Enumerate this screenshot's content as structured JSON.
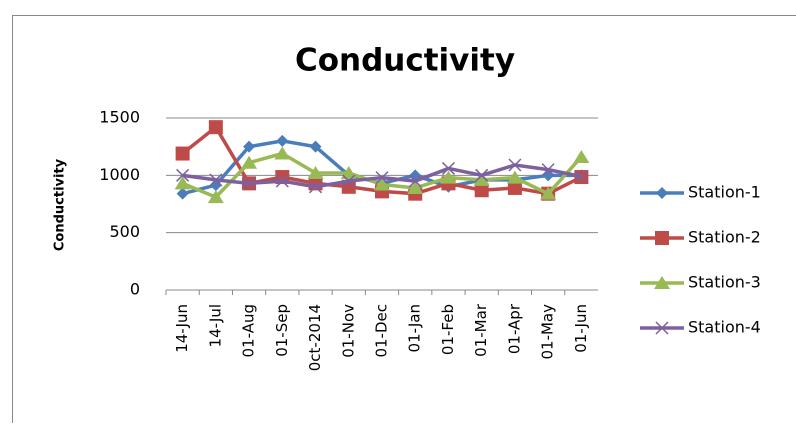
{
  "chart_data": {
    "type": "line",
    "title": "Conductivity",
    "y_label": "Conductivity",
    "categories": [
      "14-Jun",
      "14-Jul",
      "01-Aug",
      "01-Sep",
      "0ct-2014",
      "01-Nov",
      "01-Dec",
      "01-Jan",
      "01-Feb",
      "01-Mar",
      "01-Apr",
      "01-May",
      "01-Jun"
    ],
    "series": [
      {
        "name": "Station-1",
        "color": "#4a7ebb",
        "marker": "diamond",
        "values": [
          840,
          915,
          1250,
          1300,
          1250,
          1000,
          930,
          1000,
          900,
          960,
          960,
          1000,
          1000
        ]
      },
      {
        "name": "Station-2",
        "color": "#be4b48",
        "marker": "square",
        "values": [
          1190,
          1420,
          930,
          985,
          930,
          900,
          860,
          840,
          930,
          870,
          890,
          840,
          985
        ]
      },
      {
        "name": "Station-3",
        "color": "#98b954",
        "marker": "triangle",
        "values": [
          930,
          810,
          1110,
          1190,
          1020,
          1020,
          920,
          890,
          980,
          960,
          980,
          840,
          1160
        ]
      },
      {
        "name": "Station-4",
        "color": "#7d60a0",
        "marker": "x",
        "values": [
          1000,
          960,
          930,
          950,
          900,
          950,
          980,
          950,
          1060,
          1000,
          1090,
          1050,
          990
        ]
      }
    ],
    "ylim": [
      0,
      1500
    ],
    "yticks": [
      0,
      500,
      1000,
      1500
    ],
    "grid": true,
    "legend": "right"
  }
}
